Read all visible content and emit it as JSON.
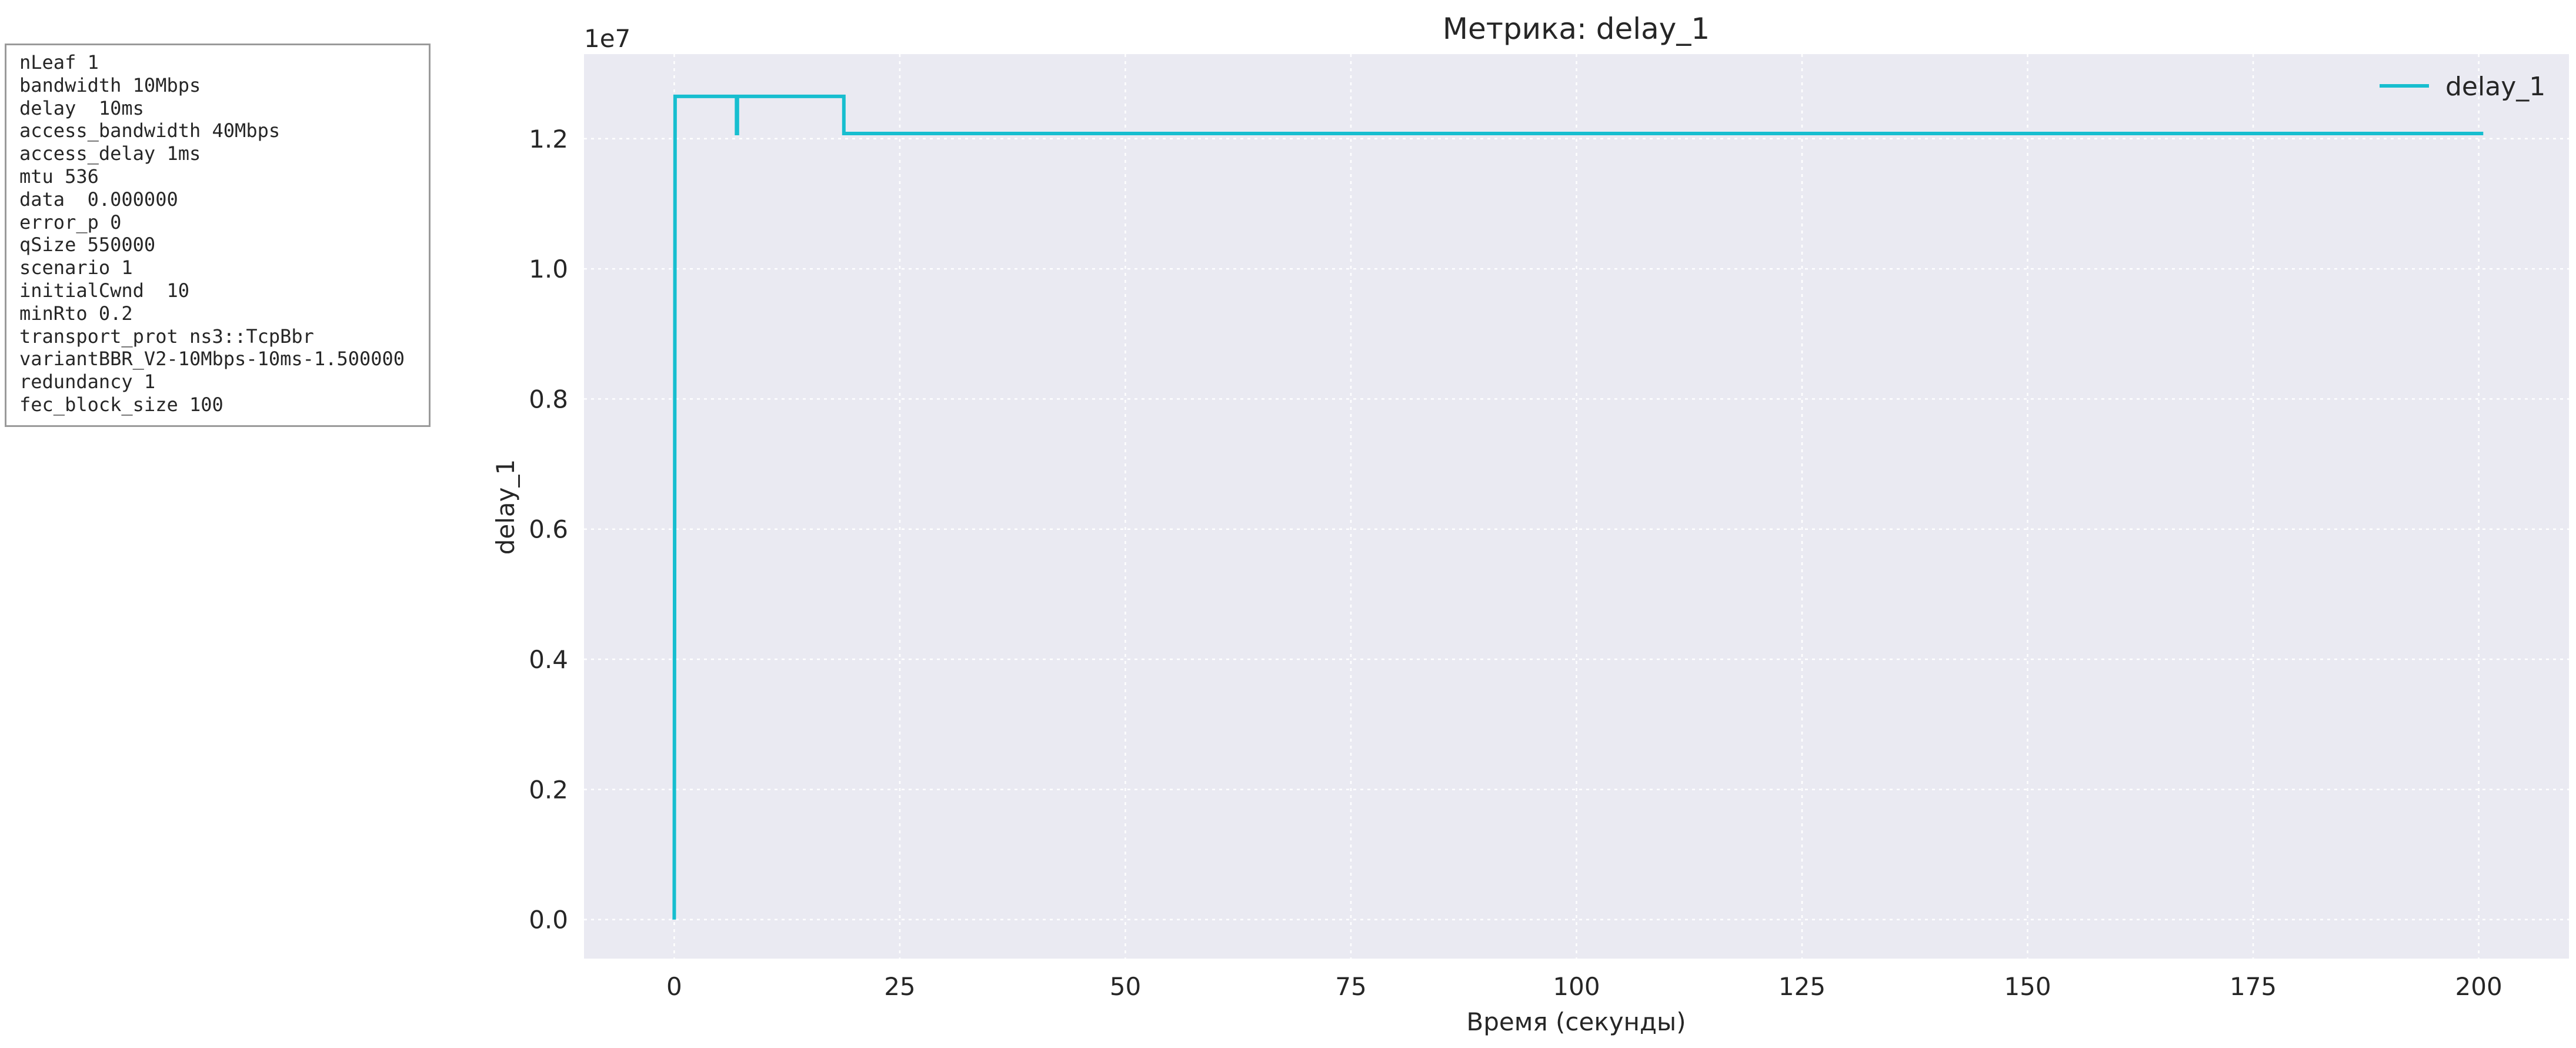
{
  "params": [
    "nLeaf 1",
    "bandwidth 10Mbps",
    "delay  10ms",
    "access_bandwidth 40Mbps",
    "access_delay 1ms",
    "mtu 536",
    "data  0.000000",
    "error_p 0",
    "qSize 550000",
    "scenario 1",
    "initialCwnd  10",
    "minRto 0.2",
    "transport_prot ns3::TcpBbr",
    "variantBBR_V2-10Mbps-10ms-1.500000",
    "redundancy 1",
    "fec_block_size 100"
  ],
  "chart_data": {
    "type": "line",
    "title": "Метрика: delay_1",
    "xlabel": "Время (секунды)",
    "ylabel": "delay_1",
    "y_offset_text": "1e7",
    "xlim": [
      -10,
      210
    ],
    "ylim": [
      -600000,
      13300000
    ],
    "x_ticks": [
      0,
      25,
      50,
      75,
      100,
      125,
      150,
      175,
      200
    ],
    "x_tick_labels": [
      "0",
      "25",
      "50",
      "75",
      "100",
      "125",
      "150",
      "175",
      "200"
    ],
    "y_ticks": [
      0,
      2000000,
      4000000,
      6000000,
      8000000,
      10000000,
      12000000
    ],
    "y_tick_labels": [
      "0.0",
      "0.2",
      "0.4",
      "0.6",
      "0.8",
      "1.0",
      "1.2"
    ],
    "grid": true,
    "legend_position": "top-right",
    "series": [
      {
        "name": "delay_1",
        "color": "#17becf",
        "x": [
          0,
          0.1,
          6.9,
          6.9,
          7.0,
          7.0,
          18.8,
          18.8,
          200.5
        ],
        "y": [
          0,
          12650000,
          12650000,
          12080000,
          12080000,
          12650000,
          12650000,
          12080000,
          12080000
        ]
      }
    ]
  }
}
